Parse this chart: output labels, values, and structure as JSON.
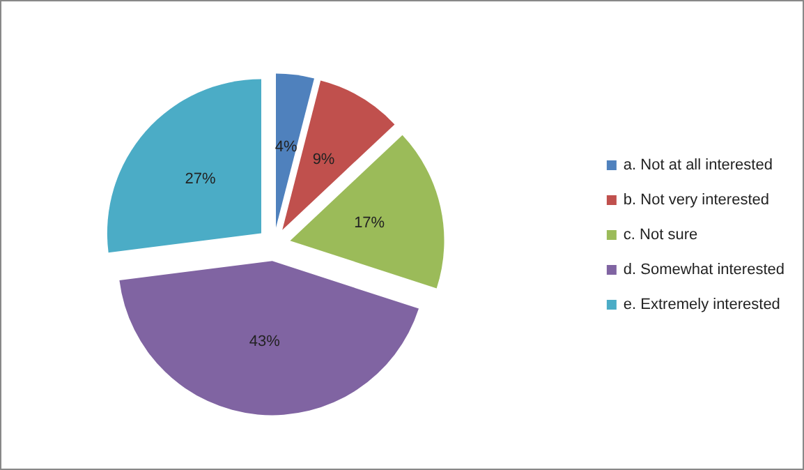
{
  "chart_data": {
    "type": "pie",
    "categories": [
      "a. Not at all interested",
      "b. Not very interested",
      "c. Not sure",
      "d. Somewhat interested",
      "e. Extremely interested"
    ],
    "values": [
      4,
      9,
      17,
      43,
      27
    ],
    "colors": [
      "#4f81bd",
      "#c0504d",
      "#9bbb59",
      "#8064a2",
      "#4bacc6"
    ],
    "value_labels": [
      "4%",
      "9%",
      "17%",
      "43%",
      "27%"
    ],
    "legend": "right"
  }
}
